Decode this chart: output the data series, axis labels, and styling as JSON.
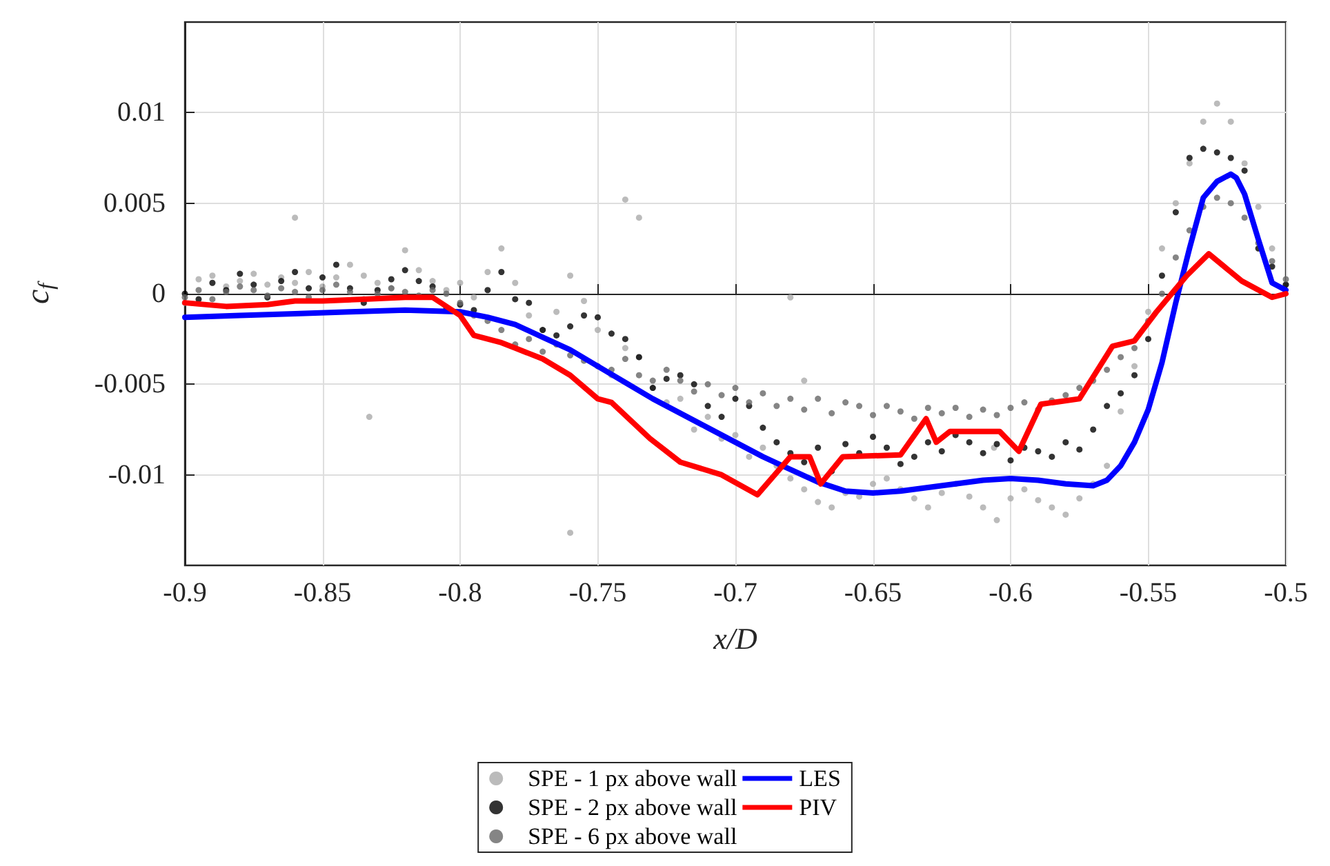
{
  "chart_data": {
    "type": "scatter",
    "xlabel": "x/D",
    "ylabel": "c$_{f}$",
    "xlim": [
      -0.9,
      -0.5
    ],
    "ylim": [
      -0.015,
      0.015
    ],
    "xticks": [
      -0.9,
      -0.85,
      -0.8,
      -0.75,
      -0.7,
      -0.65,
      -0.6,
      -0.55,
      -0.5
    ],
    "yticks": [
      -0.01,
      -0.005,
      0,
      0.005,
      0.01
    ],
    "grid": true,
    "legend": "bottom",
    "marker": "circle",
    "series": [
      {
        "name": "SPE - 1 px above wall",
        "color": "#aaaaaa",
        "x": [
          -0.9,
          -0.895,
          -0.89,
          -0.885,
          -0.88,
          -0.875,
          -0.87,
          -0.865,
          -0.86,
          -0.855,
          -0.85,
          -0.845,
          -0.84,
          -0.835,
          -0.83,
          -0.825,
          -0.82,
          -0.815,
          -0.81,
          -0.805,
          -0.8,
          -0.795,
          -0.79,
          -0.785,
          -0.78,
          -0.775,
          -0.77,
          -0.765,
          -0.76,
          -0.755,
          -0.75,
          -0.745,
          -0.74,
          -0.735,
          -0.73,
          -0.725,
          -0.72,
          -0.715,
          -0.71,
          -0.705,
          -0.7,
          -0.695,
          -0.69,
          -0.685,
          -0.68,
          -0.675,
          -0.67,
          -0.665,
          -0.66,
          -0.655,
          -0.65,
          -0.645,
          -0.64,
          -0.635,
          -0.63,
          -0.625,
          -0.62,
          -0.615,
          -0.61,
          -0.605,
          -0.6,
          -0.595,
          -0.59,
          -0.585,
          -0.58,
          -0.575,
          -0.57,
          -0.565,
          -0.56,
          -0.555,
          -0.55,
          -0.545,
          -0.54,
          -0.535,
          -0.53,
          -0.525,
          -0.52,
          -0.515,
          -0.51,
          -0.505,
          -0.5,
          -0.86,
          -0.833,
          -0.76,
          -0.74,
          -0.735,
          -0.68,
          -0.675,
          -0.606
        ],
        "values": [
          -0.0005,
          0.0008,
          0.001,
          0.0004,
          0.0007,
          0.0011,
          0.0005,
          0.0009,
          0.0006,
          0.0012,
          0.0004,
          0.0009,
          0.0016,
          0.001,
          0.0006,
          0.0003,
          0.0024,
          0.0013,
          0.0007,
          0.0002,
          0.0006,
          -0.0002,
          0.0012,
          0.0025,
          0.0006,
          -0.0012,
          -0.002,
          -0.001,
          0.001,
          -0.0004,
          -0.002,
          -0.0045,
          -0.003,
          -0.0035,
          -0.0052,
          -0.006,
          -0.0058,
          -0.0075,
          -0.0068,
          -0.008,
          -0.0078,
          -0.009,
          -0.0085,
          -0.0095,
          -0.0102,
          -0.0108,
          -0.0115,
          -0.0118,
          -0.011,
          -0.0112,
          -0.0105,
          -0.0102,
          -0.0108,
          -0.0113,
          -0.0118,
          -0.011,
          -0.0105,
          -0.0112,
          -0.0118,
          -0.0125,
          -0.0113,
          -0.0108,
          -0.0114,
          -0.0118,
          -0.0122,
          -0.0113,
          -0.0105,
          -0.0095,
          -0.0065,
          -0.004,
          -0.001,
          0.0025,
          0.005,
          0.0072,
          0.0095,
          0.0105,
          0.0095,
          0.0072,
          0.0048,
          0.0025,
          0.0005,
          0.0042,
          -0.0068,
          -0.0132,
          0.0052,
          0.0042,
          -0.0002,
          -0.0048,
          -0.0085
        ]
      },
      {
        "name": "SPE - 2 px above wall",
        "color": "#000000",
        "x": [
          -0.9,
          -0.895,
          -0.89,
          -0.885,
          -0.88,
          -0.875,
          -0.87,
          -0.865,
          -0.86,
          -0.855,
          -0.85,
          -0.845,
          -0.84,
          -0.835,
          -0.83,
          -0.825,
          -0.82,
          -0.815,
          -0.81,
          -0.805,
          -0.8,
          -0.795,
          -0.79,
          -0.785,
          -0.78,
          -0.775,
          -0.77,
          -0.765,
          -0.76,
          -0.755,
          -0.75,
          -0.745,
          -0.74,
          -0.735,
          -0.73,
          -0.725,
          -0.72,
          -0.715,
          -0.71,
          -0.705,
          -0.7,
          -0.695,
          -0.69,
          -0.685,
          -0.68,
          -0.675,
          -0.67,
          -0.665,
          -0.66,
          -0.655,
          -0.65,
          -0.645,
          -0.64,
          -0.635,
          -0.63,
          -0.625,
          -0.62,
          -0.615,
          -0.61,
          -0.605,
          -0.6,
          -0.595,
          -0.59,
          -0.585,
          -0.58,
          -0.575,
          -0.57,
          -0.565,
          -0.56,
          -0.555,
          -0.55,
          -0.545,
          -0.54,
          -0.535,
          -0.53,
          -0.525,
          -0.52,
          -0.515,
          -0.51,
          -0.505,
          -0.5
        ],
        "values": [
          0,
          -0.0003,
          0.0006,
          0.0002,
          0.0011,
          0.0005,
          -0.0002,
          0.0007,
          0.0012,
          0.0003,
          0.0009,
          0.0016,
          0.0003,
          -0.0005,
          0.0002,
          0.0008,
          0.0013,
          0.0007,
          0.0004,
          -0.0008,
          -0.0006,
          -0.0009,
          0.0002,
          0.0012,
          -0.0003,
          -0.0005,
          -0.002,
          -0.0023,
          -0.0018,
          -0.0012,
          -0.0013,
          -0.0022,
          -0.0025,
          -0.0035,
          -0.0052,
          -0.0047,
          -0.0045,
          -0.005,
          -0.0062,
          -0.0068,
          -0.0058,
          -0.0062,
          -0.0074,
          -0.0082,
          -0.0088,
          -0.0093,
          -0.0085,
          -0.0098,
          -0.0083,
          -0.0088,
          -0.0079,
          -0.0085,
          -0.0094,
          -0.009,
          -0.0082,
          -0.0087,
          -0.0078,
          -0.0082,
          -0.0088,
          -0.0083,
          -0.0092,
          -0.0085,
          -0.0087,
          -0.009,
          -0.0082,
          -0.0086,
          -0.0075,
          -0.0062,
          -0.0055,
          -0.0045,
          -0.0025,
          0.001,
          0.0045,
          0.0075,
          0.008,
          0.0078,
          0.0075,
          0.0068,
          0.0025,
          0.0015,
          0.0005
        ]
      },
      {
        "name": "SPE - 6 px above wall",
        "color": "#666666",
        "x": [
          -0.9,
          -0.895,
          -0.89,
          -0.885,
          -0.88,
          -0.875,
          -0.87,
          -0.865,
          -0.86,
          -0.855,
          -0.85,
          -0.845,
          -0.84,
          -0.835,
          -0.83,
          -0.825,
          -0.82,
          -0.815,
          -0.81,
          -0.805,
          -0.8,
          -0.795,
          -0.79,
          -0.785,
          -0.78,
          -0.775,
          -0.77,
          -0.765,
          -0.76,
          -0.755,
          -0.75,
          -0.745,
          -0.74,
          -0.735,
          -0.73,
          -0.725,
          -0.72,
          -0.715,
          -0.71,
          -0.705,
          -0.7,
          -0.695,
          -0.69,
          -0.685,
          -0.68,
          -0.675,
          -0.67,
          -0.665,
          -0.66,
          -0.655,
          -0.65,
          -0.645,
          -0.64,
          -0.635,
          -0.63,
          -0.625,
          -0.62,
          -0.615,
          -0.61,
          -0.605,
          -0.6,
          -0.595,
          -0.59,
          -0.585,
          -0.58,
          -0.575,
          -0.57,
          -0.565,
          -0.56,
          -0.555,
          -0.55,
          -0.545,
          -0.54,
          -0.535,
          -0.53,
          -0.525,
          -0.52,
          -0.515,
          -0.51,
          -0.505,
          -0.5
        ],
        "values": [
          -0.0002,
          0.0002,
          -0.0003,
          0.0001,
          0.0004,
          0.0002,
          -0.0001,
          0.0003,
          0.0001,
          -0.0002,
          0.0002,
          0.0005,
          0.0001,
          -0.0003,
          0,
          0.0003,
          0.0001,
          -0.0001,
          0.0002,
          0,
          -0.0005,
          -0.0012,
          -0.0015,
          -0.002,
          -0.0028,
          -0.0025,
          -0.0032,
          -0.0028,
          -0.0034,
          -0.0037,
          -0.004,
          -0.0042,
          -0.0036,
          -0.0045,
          -0.0048,
          -0.0042,
          -0.0048,
          -0.0054,
          -0.005,
          -0.0056,
          -0.0052,
          -0.006,
          -0.0055,
          -0.0062,
          -0.0058,
          -0.0064,
          -0.0058,
          -0.0066,
          -0.006,
          -0.0062,
          -0.0067,
          -0.0062,
          -0.0065,
          -0.0069,
          -0.0063,
          -0.0066,
          -0.0063,
          -0.0068,
          -0.0064,
          -0.0067,
          -0.0063,
          -0.006,
          -0.0064,
          -0.0059,
          -0.0056,
          -0.0052,
          -0.0048,
          -0.0042,
          -0.0035,
          -0.003,
          -0.0015,
          0,
          0.002,
          0.0035,
          0.0048,
          0.0053,
          0.005,
          0.0042,
          0.0028,
          0.0018,
          0.0008
        ]
      },
      {
        "name": "LES",
        "type": "line",
        "color": "#0000ff",
        "marker": "none",
        "x": [
          -0.9,
          -0.88,
          -0.86,
          -0.84,
          -0.82,
          -0.8,
          -0.79,
          -0.78,
          -0.77,
          -0.76,
          -0.75,
          -0.74,
          -0.73,
          -0.72,
          -0.71,
          -0.7,
          -0.69,
          -0.68,
          -0.67,
          -0.66,
          -0.65,
          -0.64,
          -0.63,
          -0.62,
          -0.61,
          -0.6,
          -0.59,
          -0.58,
          -0.57,
          -0.565,
          -0.56,
          -0.555,
          -0.55,
          -0.545,
          -0.54,
          -0.535,
          -0.53,
          -0.525,
          -0.52,
          -0.518,
          -0.515,
          -0.51,
          -0.505,
          -0.5
        ],
        "values": [
          -0.0013,
          -0.0012,
          -0.0011,
          -0.001,
          -0.0009,
          -0.001,
          -0.0013,
          -0.0017,
          -0.0024,
          -0.0031,
          -0.004,
          -0.0049,
          -0.0058,
          -0.0066,
          -0.0074,
          -0.0082,
          -0.009,
          -0.0097,
          -0.0104,
          -0.0109,
          -0.011,
          -0.0109,
          -0.0107,
          -0.0105,
          -0.0103,
          -0.0102,
          -0.0103,
          -0.0105,
          -0.0106,
          -0.0103,
          -0.0095,
          -0.0082,
          -0.0064,
          -0.0038,
          -0.0005,
          0.0025,
          0.0053,
          0.0062,
          0.0066,
          0.0064,
          0.0055,
          0.003,
          0.0006,
          0.0002
        ],
        "line_style": "solid"
      },
      {
        "name": "PIV",
        "type": "line",
        "color": "#ff0000",
        "marker": "none",
        "x": [
          -0.9,
          -0.885,
          -0.87,
          -0.86,
          -0.85,
          -0.835,
          -0.82,
          -0.81,
          -0.8,
          -0.795,
          -0.785,
          -0.78,
          -0.77,
          -0.76,
          -0.75,
          -0.745,
          -0.731,
          -0.72,
          -0.705,
          -0.692,
          -0.68,
          -0.673,
          -0.669,
          -0.661,
          -0.64,
          -0.6307,
          -0.627,
          -0.622,
          -0.604,
          -0.597,
          -0.589,
          -0.575,
          -0.563,
          -0.555,
          -0.547,
          -0.536,
          -0.528,
          -0.516,
          -0.505,
          -0.5
        ],
        "values": [
          -0.0005,
          -0.0007,
          -0.0006,
          -0.0004,
          -0.0004,
          -0.0003,
          -0.0002,
          -0.0002,
          -0.0012,
          -0.0023,
          -0.0027,
          -0.003,
          -0.0036,
          -0.0045,
          -0.0058,
          -0.006,
          -0.008,
          -0.0093,
          -0.01,
          -0.0111,
          -0.009,
          -0.009,
          -0.0105,
          -0.009,
          -0.0089,
          -0.0069,
          -0.0082,
          -0.0076,
          -0.0076,
          -0.0087,
          -0.0061,
          -0.0058,
          -0.0029,
          -0.0026,
          -0.001,
          0.001,
          0.0022,
          0.0007,
          -0.0002,
          0
        ],
        "line_style": "solid"
      }
    ]
  }
}
